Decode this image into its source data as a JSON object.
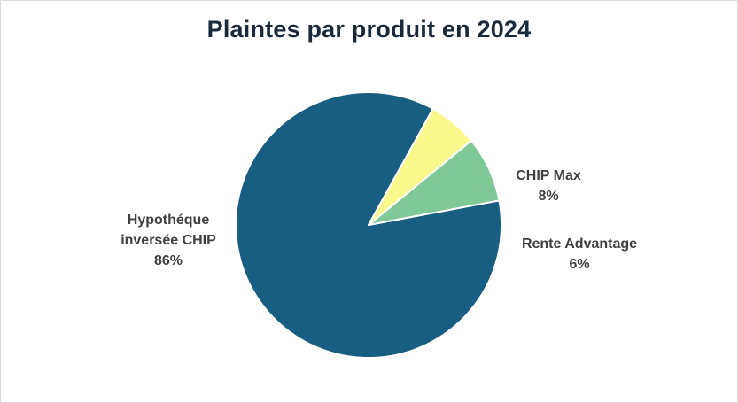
{
  "chart_data": {
    "type": "pie",
    "title": "Plaintes par produit en 2024",
    "categories": [
      "Hypothéque inversée CHIP",
      "CHIP Max",
      "Rente Advantage"
    ],
    "values": [
      86,
      8,
      6
    ],
    "value_labels": [
      "86%",
      "8%",
      "6%"
    ],
    "label_lines": [
      [
        "Hypothéque",
        "inversée CHIP",
        "86%"
      ],
      [
        "CHIP Max",
        "8%"
      ],
      [
        "Rente Advantage",
        "6%"
      ]
    ],
    "colors": [
      "#175e82",
      "#7ec995",
      "#fbf98c"
    ],
    "slice_border_color": "#ffffff",
    "legend": "none"
  }
}
